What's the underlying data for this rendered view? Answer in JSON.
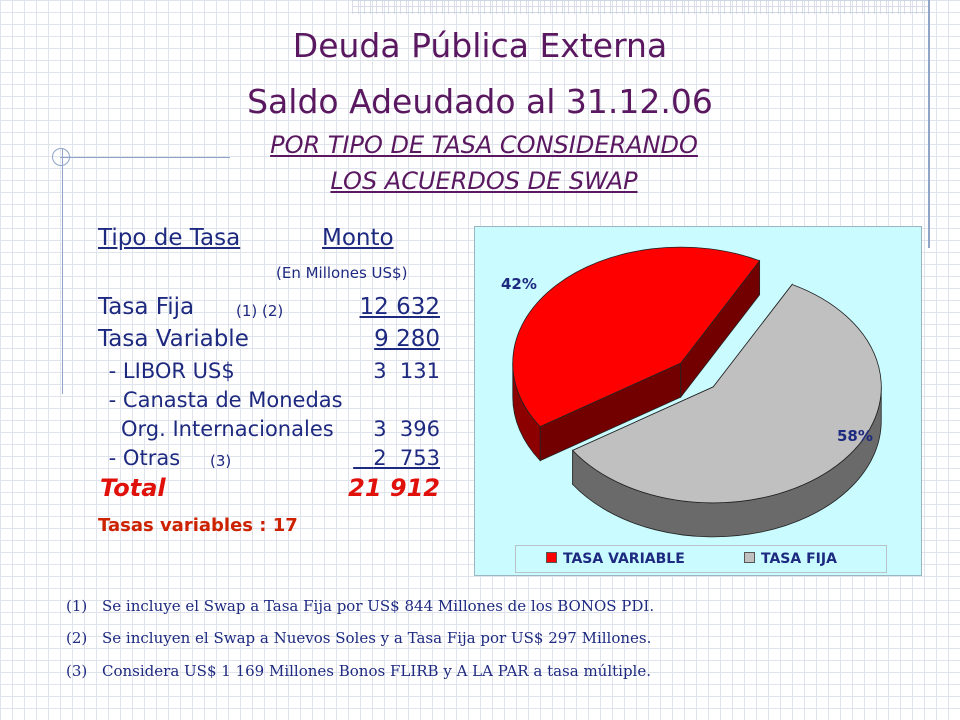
{
  "title_line1": "Deuda Pública Externa",
  "title_line2": "Saldo Adeudado al 31.12.06",
  "subtitle_line1": "POR TIPO DE TASA CONSIDERANDO",
  "subtitle_line2": "LOS ACUERDOS DE SWAP",
  "table": {
    "col_tipo": "Tipo de Tasa",
    "col_monto": "Monto",
    "unit": "(En Millones US$)",
    "rows": [
      {
        "label": "Tasa Fija",
        "note": "(1) (2)",
        "value": "12 632"
      },
      {
        "label": "Tasa Variable",
        "note": "",
        "value": "9 280"
      },
      {
        "label": " - LIBOR US$",
        "note": "",
        "value": "3  131"
      },
      {
        "label": " - Canasta de Monedas",
        "note": "",
        "value": ""
      },
      {
        "label": "Org. Internacionales",
        "note": "",
        "value": "3  396"
      },
      {
        "label": " - Otras",
        "note": "(3)",
        "value": "2  753"
      }
    ],
    "total_label": "Total",
    "total_value": "21 912",
    "tasas_variables": "Tasas variables :  17"
  },
  "chart_data": {
    "type": "pie",
    "labels": [
      "TASA VARIABLE",
      "TASA FIJA"
    ],
    "values": [
      42,
      58
    ],
    "value_labels": [
      "42%",
      "58%"
    ],
    "colors": [
      "#ff0000",
      "#c0c0c0"
    ],
    "exploded": true,
    "three_d": true,
    "legend_position": "bottom",
    "background": "#c9fbff"
  },
  "notes": [
    {
      "num": "(1)",
      "text": "Se incluye el Swap a Tasa Fija por US$ 844 Millones de los BONOS PDI."
    },
    {
      "num": "(2)",
      "text": "Se incluyen el Swap a Nuevos Soles y a Tasa Fija por US$ 297 Millones."
    },
    {
      "num": "(3)",
      "text": "Considera US$ 1 169 Millones Bonos FLIRB y A LA PAR a tasa múltiple."
    }
  ]
}
